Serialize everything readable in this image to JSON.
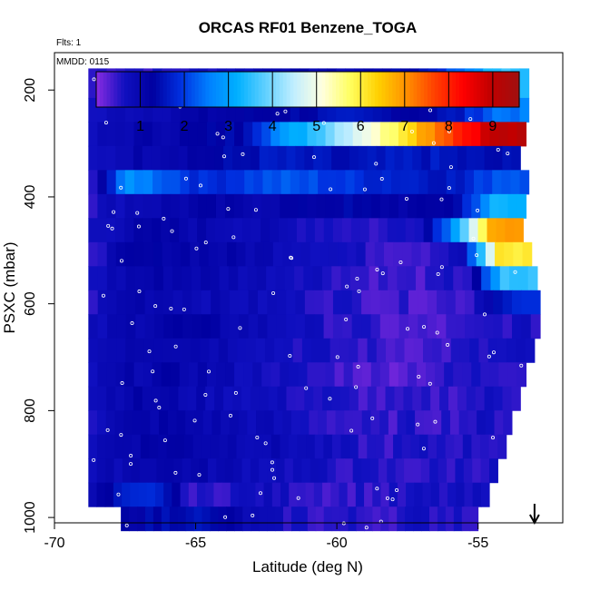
{
  "chart_data": {
    "type": "heatmap",
    "title": "ORCAS RF01 Benzene_TOGA",
    "flights_label": "Flts: 1",
    "date_label": "MMDD: 0115",
    "xlabel": "Latitude (deg N)",
    "ylabel": "PSXC (mbar)",
    "xlim": [
      -70,
      -52
    ],
    "ylim": [
      1010,
      130
    ],
    "y_reversed": true,
    "x_ticks": [
      -70,
      -65,
      -60,
      -55
    ],
    "y_ticks": [
      200,
      400,
      600,
      800,
      1000
    ],
    "colorbar": {
      "ticks": [
        1,
        2,
        3,
        4,
        5,
        6,
        7,
        8,
        9
      ],
      "range": [
        0,
        9.6
      ],
      "colors": [
        "#8a2be2",
        "#1010c0",
        "#0000a0",
        "#0030e0",
        "#0080ff",
        "#00b0ff",
        "#60d0ff",
        "#c0eeff",
        "#ffffe0",
        "#ffff60",
        "#ffd000",
        "#ff9000",
        "#ff4000",
        "#ff0000",
        "#c00000",
        "#a01010"
      ]
    },
    "pressure_levels": [
      190,
      235,
      280,
      325,
      370,
      415,
      460,
      505,
      550,
      595,
      640,
      685,
      730,
      775,
      820,
      865,
      910,
      955,
      1000
    ],
    "profile": {
      "lat_start": -68.8,
      "lat_end": [
        -53.2,
        -53.2,
        -53.3,
        -53.5,
        -53.2,
        -53.3,
        -53.4,
        -53.1,
        -52.9,
        -52.8,
        -52.8,
        -53.0,
        -53.3,
        -53.5,
        -53.8,
        -54.0,
        -54.3,
        -54.6,
        -55.0
      ],
      "rows": [
        [
          0.5,
          0.6,
          0.5,
          0.7,
          0.8,
          1.1,
          1.0,
          0.9,
          1.2,
          1.5,
          2.4,
          3.5
        ],
        [
          0.6,
          0.9,
          1.0,
          1.1,
          1.2,
          1.3,
          1.4,
          1.5,
          1.4,
          1.3,
          1.6,
          2.5
        ],
        [
          0.7,
          1.0,
          1.1,
          1.2,
          1.4,
          2.6,
          3.5,
          4.6,
          5.5,
          6.8,
          8.0,
          9.0
        ],
        [
          0.6,
          1.0,
          1.1,
          1.2,
          1.4,
          1.6,
          1.5,
          1.4,
          1.5,
          1.6,
          1.5,
          1.4
        ],
        [
          0.7,
          2.8,
          2.3,
          1.8,
          2.0,
          2.2,
          2.1,
          1.9,
          1.8,
          1.7,
          1.6,
          2.3
        ],
        [
          0.6,
          0.9,
          1.0,
          1.1,
          1.0,
          1.1,
          1.2,
          1.3,
          1.2,
          1.1,
          1.4,
          3.2
        ],
        [
          0.7,
          1.0,
          1.1,
          1.0,
          0.9,
          0.8,
          0.7,
          0.6,
          0.5,
          0.8,
          3.0,
          6.8
        ],
        [
          0.6,
          1.1,
          1.2,
          1.1,
          1.0,
          0.9,
          0.8,
          0.6,
          0.5,
          0.5,
          0.9,
          6.0
        ],
        [
          0.7,
          1.0,
          1.1,
          1.0,
          0.9,
          0.8,
          0.7,
          0.5,
          0.4,
          0.4,
          0.6,
          3.5
        ],
        [
          0.6,
          1.1,
          1.0,
          0.9,
          0.8,
          0.7,
          0.6,
          0.5,
          0.4,
          0.4,
          0.5,
          1.8
        ],
        [
          0.7,
          1.0,
          1.2,
          1.1,
          0.9,
          0.8,
          0.6,
          0.5,
          0.3,
          0.3,
          0.4,
          0.6
        ],
        [
          0.8,
          1.1,
          1.1,
          1.0,
          0.9,
          0.7,
          0.6,
          0.5,
          0.4,
          0.4,
          0.5,
          0.6
        ],
        [
          0.7,
          1.0,
          1.1,
          1.0,
          0.8,
          0.7,
          0.5,
          0.4,
          0.3,
          0.4,
          0.5,
          0.6
        ],
        [
          0.8,
          1.1,
          1.0,
          0.9,
          0.8,
          0.7,
          0.6,
          0.5,
          0.4,
          0.4,
          0.5,
          0.6
        ],
        [
          0.7,
          1.0,
          1.1,
          1.0,
          0.9,
          0.8,
          0.6,
          0.5,
          0.4,
          0.5,
          0.5,
          0.6
        ],
        [
          0.8,
          1.1,
          1.2,
          1.1,
          1.0,
          0.9,
          0.8,
          0.6,
          0.5,
          0.5,
          0.6,
          0.6
        ],
        [
          0.7,
          1.0,
          1.1,
          1.0,
          0.9,
          0.8,
          0.7,
          0.6,
          0.5,
          0.5,
          0.5,
          0.6
        ],
        [
          0.9,
          1.6,
          1.8,
          0.4,
          0.6,
          0.7,
          0.6,
          0.5,
          0.5,
          0.5,
          0.6,
          0.6
        ],
        [
          null,
          1.2,
          1.4,
          1.6,
          1.2,
          0.8,
          0.6,
          0.5,
          0.5,
          0.5,
          0.6,
          0.6
        ]
      ]
    },
    "arrow_lat": -53.0
  }
}
